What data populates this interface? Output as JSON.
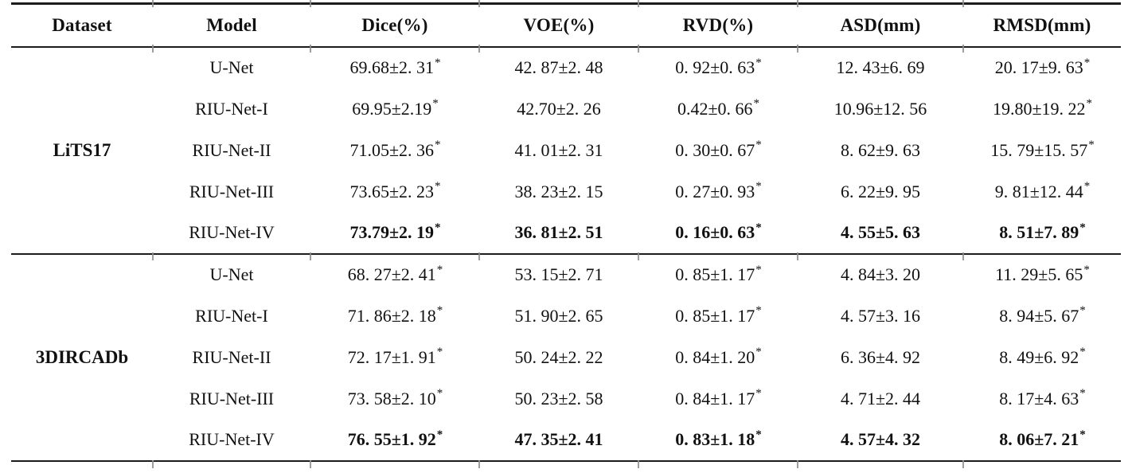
{
  "table": {
    "headers": [
      "Dataset",
      "Model",
      "Dice(%)",
      "VOE(%)",
      "RVD(%)",
      "ASD(mm)",
      "RMSD(mm)"
    ],
    "groups": [
      {
        "dataset": "LiTS17",
        "rows": [
          {
            "model": "U-Net",
            "bold": false,
            "cells": [
              {
                "v": "69.68±2. 31",
                "s": "*"
              },
              {
                "v": "42. 87±2. 48",
                "s": ""
              },
              {
                "v": "0. 92±0. 63",
                "s": "*"
              },
              {
                "v": "12. 43±6. 69",
                "s": ""
              },
              {
                "v": "20. 17±9. 63",
                "s": "*"
              }
            ]
          },
          {
            "model": "RIU-Net-I",
            "bold": false,
            "cells": [
              {
                "v": "69.95±2.19",
                "s": "*"
              },
              {
                "v": "42.70±2. 26",
                "s": ""
              },
              {
                "v": "0.42±0. 66",
                "s": "*"
              },
              {
                "v": "10.96±12. 56",
                "s": ""
              },
              {
                "v": "19.80±19. 22",
                "s": "*"
              }
            ]
          },
          {
            "model": "RIU-Net-II",
            "bold": false,
            "cells": [
              {
                "v": "71.05±2. 36",
                "s": "*"
              },
              {
                "v": "41. 01±2. 31",
                "s": ""
              },
              {
                "v": "0. 30±0. 67",
                "s": "*"
              },
              {
                "v": "8. 62±9. 63",
                "s": ""
              },
              {
                "v": "15. 79±15. 57",
                "s": "*"
              }
            ]
          },
          {
            "model": "RIU-Net-III",
            "bold": false,
            "cells": [
              {
                "v": "73.65±2. 23",
                "s": "*"
              },
              {
                "v": "38. 23±2. 15",
                "s": ""
              },
              {
                "v": "0. 27±0. 93",
                "s": "*"
              },
              {
                "v": "6. 22±9. 95",
                "s": ""
              },
              {
                "v": "9. 81±12. 44",
                "s": "*"
              }
            ]
          },
          {
            "model": "RIU-Net-IV",
            "bold": true,
            "cells": [
              {
                "v": "73.79±2. 19",
                "s": "*"
              },
              {
                "v": "36. 81±2. 51",
                "s": ""
              },
              {
                "v": "0. 16±0. 63",
                "s": "*"
              },
              {
                "v": "4. 55±5. 63",
                "s": ""
              },
              {
                "v": "8. 51±7. 89",
                "s": "*"
              }
            ]
          }
        ]
      },
      {
        "dataset": "3DIRCADb",
        "rows": [
          {
            "model": "U-Net",
            "bold": false,
            "cells": [
              {
                "v": "68. 27±2. 41",
                "s": "*"
              },
              {
                "v": "53. 15±2. 71",
                "s": ""
              },
              {
                "v": "0. 85±1. 17",
                "s": "*"
              },
              {
                "v": "4. 84±3. 20",
                "s": ""
              },
              {
                "v": "11. 29±5. 65",
                "s": "*"
              }
            ]
          },
          {
            "model": "RIU-Net-I",
            "bold": false,
            "cells": [
              {
                "v": "71. 86±2. 18",
                "s": "*"
              },
              {
                "v": "51. 90±2. 65",
                "s": ""
              },
              {
                "v": "0. 85±1. 17",
                "s": "*"
              },
              {
                "v": "4. 57±3. 16",
                "s": ""
              },
              {
                "v": "8. 94±5. 67",
                "s": "*"
              }
            ]
          },
          {
            "model": "RIU-Net-II",
            "bold": false,
            "cells": [
              {
                "v": "72. 17±1. 91",
                "s": "*"
              },
              {
                "v": "50. 24±2. 22",
                "s": ""
              },
              {
                "v": "0. 84±1. 20",
                "s": "*"
              },
              {
                "v": "6. 36±4. 92",
                "s": ""
              },
              {
                "v": "8. 49±6. 92",
                "s": "*"
              }
            ]
          },
          {
            "model": "RIU-Net-III",
            "bold": false,
            "cells": [
              {
                "v": "73. 58±2. 10",
                "s": "*"
              },
              {
                "v": "50. 23±2. 58",
                "s": ""
              },
              {
                "v": "0. 84±1. 17",
                "s": "*"
              },
              {
                "v": "4. 71±2. 44",
                "s": ""
              },
              {
                "v": "8. 17±4. 63",
                "s": "*"
              }
            ]
          },
          {
            "model": "RIU-Net-IV",
            "bold": true,
            "cells": [
              {
                "v": "76. 55±1. 92",
                "s": "*"
              },
              {
                "v": "47. 35±2. 41",
                "s": ""
              },
              {
                "v": "0. 83±1. 18",
                "s": "*"
              },
              {
                "v": "4. 57±4. 32",
                "s": ""
              },
              {
                "v": "8. 06±7. 21",
                "s": "*"
              }
            ]
          }
        ]
      }
    ]
  }
}
